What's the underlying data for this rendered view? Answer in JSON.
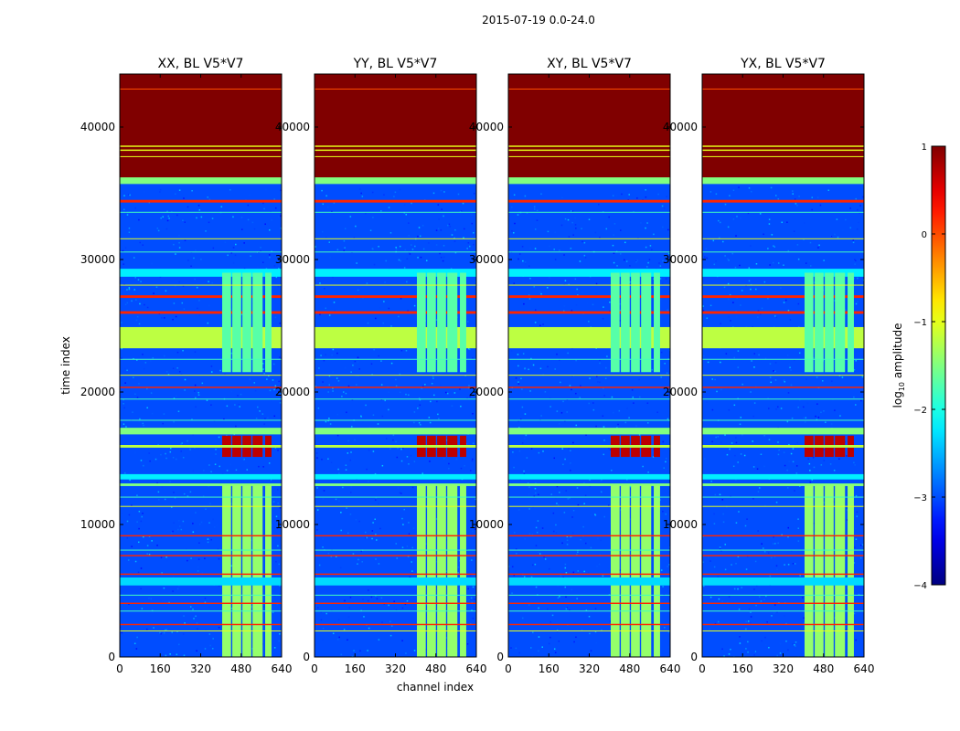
{
  "figure": {
    "suptitle": "2015-07-19 0.0-24.0",
    "xlabel": "channel index",
    "ylabel": "time index"
  },
  "colorbar": {
    "label_prefix": "log",
    "label_sub": "10",
    "label_suffix": " amplitude",
    "ticks": [
      {
        "value": 1,
        "label": "1"
      },
      {
        "value": 0,
        "label": "0"
      },
      {
        "value": -1,
        "label": "−1"
      },
      {
        "value": -2,
        "label": "−2"
      },
      {
        "value": -3,
        "label": "−3"
      },
      {
        "value": -4,
        "label": "−4"
      }
    ],
    "range": [
      -4,
      1
    ],
    "colormap": "jet"
  },
  "chart_data": {
    "type": "heatmap",
    "xlim": [
      0,
      640
    ],
    "ylim": [
      0,
      44000
    ],
    "xticks": [
      0,
      160,
      320,
      480,
      640
    ],
    "xtick_labels": [
      "0",
      "160",
      "320",
      "480",
      "640"
    ],
    "yticks": [
      0,
      10000,
      20000,
      30000,
      40000
    ],
    "ytick_labels": [
      "0",
      "10000",
      "20000",
      "30000",
      "40000"
    ],
    "panels": [
      {
        "title": "XX, BL V5*V7"
      },
      {
        "title": "YY, BL V5*V7"
      },
      {
        "title": "XY, BL V5*V7"
      },
      {
        "title": "YX, BL V5*V7"
      }
    ],
    "background_level": -3.0,
    "rfi_channel_bands": [
      [
        405,
        440
      ],
      [
        445,
        480
      ],
      [
        485,
        520
      ],
      [
        525,
        565
      ],
      [
        575,
        600
      ]
    ],
    "features": [
      {
        "t0": 36000,
        "t1": 44000,
        "level": 1.0,
        "channels": "all",
        "label": "flagged"
      },
      {
        "t0": 38500,
        "t1": 38600,
        "level": -1.0,
        "channels": "all"
      },
      {
        "t0": 38200,
        "t1": 38300,
        "level": -1.0,
        "channels": "all"
      },
      {
        "t0": 35700,
        "t1": 36200,
        "level": -1.5,
        "channels": "all"
      },
      {
        "t0": 34300,
        "t1": 34500,
        "level": 0.2,
        "channels": "all"
      },
      {
        "t0": 28700,
        "t1": 29300,
        "level": -2.2,
        "channels": "all"
      },
      {
        "t0": 27100,
        "t1": 27300,
        "level": 0.2,
        "channels": "all"
      },
      {
        "t0": 25900,
        "t1": 26100,
        "level": 0.2,
        "channels": "all"
      },
      {
        "t0": 23200,
        "t1": 25000,
        "level": 0.6,
        "channels": "rfi"
      },
      {
        "t0": 23300,
        "t1": 24900,
        "level": -1.2,
        "channels": "all"
      },
      {
        "t0": 21500,
        "t1": 29000,
        "level": -1.7,
        "channels": "rfi"
      },
      {
        "t0": 20300,
        "t1": 20400,
        "level": 0.2,
        "channels": "all"
      },
      {
        "t0": 16800,
        "t1": 17300,
        "level": -1.5,
        "channels": "all"
      },
      {
        "t0": 15100,
        "t1": 16700,
        "level": 0.7,
        "channels": "rfi"
      },
      {
        "t0": 15800,
        "t1": 16000,
        "level": -1.2,
        "channels": "all"
      },
      {
        "t0": 13400,
        "t1": 13800,
        "level": -2.2,
        "channels": "all"
      },
      {
        "t0": 12900,
        "t1": 13100,
        "level": -1.5,
        "channels": "all"
      },
      {
        "t0": 0,
        "t1": 13000,
        "level": -1.4,
        "channels": "rfi"
      },
      {
        "t0": 9100,
        "t1": 9200,
        "level": 0.2,
        "channels": "all"
      },
      {
        "t0": 7600,
        "t1": 7700,
        "level": 0.2,
        "channels": "all"
      },
      {
        "t0": 6200,
        "t1": 6300,
        "level": 0.2,
        "channels": "all"
      },
      {
        "t0": 5400,
        "t1": 6000,
        "level": -2.3,
        "channels": "all"
      },
      {
        "t0": 4000,
        "t1": 4100,
        "level": 0.2,
        "channels": "all"
      },
      {
        "t0": 2400,
        "t1": 2500,
        "level": 0.2,
        "channels": "all"
      }
    ],
    "thin_lines": [
      {
        "t": 42900,
        "level": 0.0
      },
      {
        "t": 37800,
        "level": -1.0
      },
      {
        "t": 33600,
        "level": -1.8
      },
      {
        "t": 31600,
        "level": -1.0
      },
      {
        "t": 30600,
        "level": -1.8
      },
      {
        "t": 28100,
        "level": -1.0
      },
      {
        "t": 22500,
        "level": -1.8
      },
      {
        "t": 21300,
        "level": -1.0
      },
      {
        "t": 19500,
        "level": -1.8
      },
      {
        "t": 17900,
        "level": -1.8
      },
      {
        "t": 12100,
        "level": -1.8
      },
      {
        "t": 11400,
        "level": -1.0
      },
      {
        "t": 8100,
        "level": -1.8
      },
      {
        "t": 4700,
        "level": -1.8
      },
      {
        "t": 3500,
        "level": -1.8
      },
      {
        "t": 2000,
        "level": -1.0
      }
    ]
  }
}
